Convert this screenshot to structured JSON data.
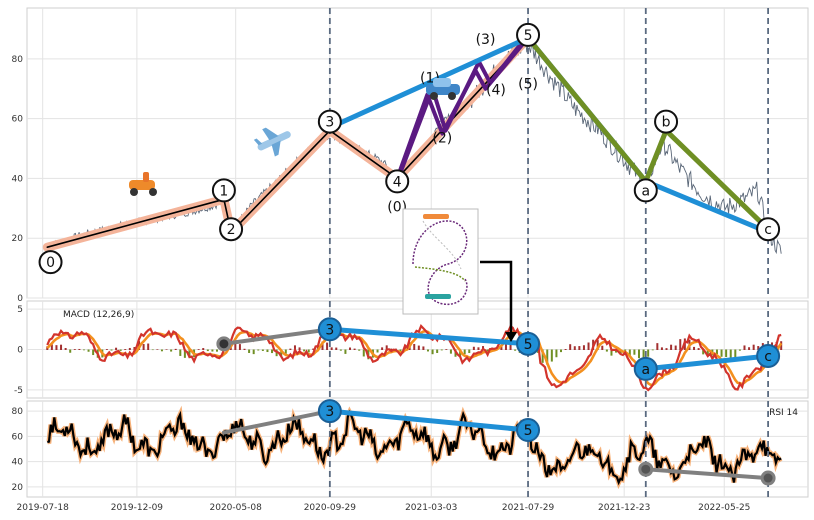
{
  "chart_data": {
    "type": "line",
    "x_ticks": [
      "2019-07-18",
      "2019-12-09",
      "2020-05-08",
      "2020-09-29",
      "2021-03-03",
      "2021-07-29",
      "2021-12-23",
      "2022-05-25"
    ],
    "vertical_markers": [
      "2020-09-29",
      "2021-07-29",
      "2022-01-25",
      "2022-07-31"
    ],
    "colors": {
      "price": "#5a6778",
      "elliott_minor": "#f4b49a",
      "elliott_path": "#000000",
      "blue_wave": "#1f8fd6",
      "purple_wave": "#5b1a82",
      "green_wave": "#6f8f24",
      "rsi": "#000000",
      "rsi_glow": "#f7b27a",
      "macd_line": "#d2342c",
      "macd_signal": "#f3901f",
      "macd_hist_pos": "#a33030",
      "macd_hist_neg": "#6f8f24",
      "grey_trend": "#808080",
      "marker_line": "#5a6a80"
    },
    "price_panel": {
      "ylim": [
        0,
        97
      ],
      "yticks": [
        0,
        20,
        40,
        60,
        80
      ],
      "series": [
        {
          "x": "2019-07-25",
          "y": 17
        },
        {
          "x": "2019-09-15",
          "y": 21
        },
        {
          "x": "2019-11-10",
          "y": 24
        },
        {
          "x": "2020-01-15",
          "y": 27
        },
        {
          "x": "2020-03-01",
          "y": 29
        },
        {
          "x": "2020-04-05",
          "y": 31
        },
        {
          "x": "2020-04-20",
          "y": 33
        },
        {
          "x": "2020-05-01",
          "y": 22
        },
        {
          "x": "2020-06-01",
          "y": 31
        },
        {
          "x": "2020-07-15",
          "y": 40
        },
        {
          "x": "2020-08-20",
          "y": 48
        },
        {
          "x": "2020-09-29",
          "y": 55
        },
        {
          "x": "2020-11-01",
          "y": 51
        },
        {
          "x": "2020-12-15",
          "y": 46
        },
        {
          "x": "2021-01-10",
          "y": 41
        },
        {
          "x": "2021-02-15",
          "y": 48
        },
        {
          "x": "2021-03-20",
          "y": 60
        },
        {
          "x": "2021-04-25",
          "y": 64
        },
        {
          "x": "2021-05-25",
          "y": 72
        },
        {
          "x": "2021-06-25",
          "y": 80
        },
        {
          "x": "2021-07-29",
          "y": 85
        },
        {
          "x": "2021-09-01",
          "y": 74
        },
        {
          "x": "2021-10-10",
          "y": 63
        },
        {
          "x": "2021-11-15",
          "y": 56
        },
        {
          "x": "2021-12-20",
          "y": 47
        },
        {
          "x": "2022-01-25",
          "y": 38
        },
        {
          "x": "2022-02-20",
          "y": 52
        },
        {
          "x": "2022-03-15",
          "y": 44
        },
        {
          "x": "2022-04-20",
          "y": 35
        },
        {
          "x": "2022-05-25",
          "y": 30
        },
        {
          "x": "2022-06-25",
          "y": 33
        },
        {
          "x": "2022-07-15",
          "y": 36
        },
        {
          "x": "2022-07-31",
          "y": 22
        },
        {
          "x": "2022-08-20",
          "y": 15
        }
      ],
      "minor_wave": [
        {
          "x": "2019-07-25",
          "y": 17
        },
        {
          "x": "2020-04-20",
          "y": 33
        },
        {
          "x": "2020-05-01",
          "y": 22
        },
        {
          "x": "2020-09-29",
          "y": 56
        },
        {
          "x": "2021-01-10",
          "y": 40
        },
        {
          "x": "2021-07-29",
          "y": 87
        }
      ],
      "blue_wave": [
        {
          "x": "2020-09-29",
          "y": 57
        },
        {
          "x": "2021-07-29",
          "y": 87
        },
        {
          "x": "2022-01-25",
          "y": 39
        },
        {
          "x": "2022-07-31",
          "y": 22
        }
      ],
      "purple_waves": [
        [
          {
            "x": "2021-01-10",
            "y": 40
          },
          {
            "x": "2021-02-25",
            "y": 68
          },
          {
            "x": "2021-03-20",
            "y": 55
          },
          {
            "x": "2021-05-10",
            "y": 76
          },
          {
            "x": "2021-05-25",
            "y": 70
          },
          {
            "x": "2021-07-29",
            "y": 87
          }
        ],
        [
          {
            "x": "2021-01-15",
            "y": 42
          },
          {
            "x": "2021-03-05",
            "y": 70
          },
          {
            "x": "2021-03-25",
            "y": 56
          },
          {
            "x": "2021-05-15",
            "y": 79
          },
          {
            "x": "2021-06-01",
            "y": 72
          },
          {
            "x": "2021-07-29",
            "y": 88
          }
        ]
      ],
      "green_wave": [
        {
          "x": "2021-07-29",
          "y": 87
        },
        {
          "x": "2022-01-25",
          "y": 39
        },
        {
          "x": "2022-02-25",
          "y": 56
        },
        {
          "x": "2022-07-31",
          "y": 23
        }
      ],
      "wave_points": [
        {
          "label": "0",
          "x": "2019-07-30",
          "y": 12
        },
        {
          "label": "1",
          "x": "2020-04-20",
          "y": 36
        },
        {
          "label": "2",
          "x": "2020-05-01",
          "y": 23
        },
        {
          "label": "3",
          "x": "2020-09-29",
          "y": 59
        },
        {
          "label": "4",
          "x": "2021-01-10",
          "y": 39
        },
        {
          "label": "5",
          "x": "2021-07-29",
          "y": 88
        },
        {
          "label": "a",
          "x": "2022-01-25",
          "y": 36
        },
        {
          "label": "b",
          "x": "2022-02-25",
          "y": 59
        },
        {
          "label": "c",
          "x": "2022-07-31",
          "y": 23
        }
      ],
      "wave_text": [
        {
          "text": "(0)",
          "x": "2021-01-10",
          "y": 29
        },
        {
          "text": "(1)",
          "x": "2021-03-01",
          "y": 72
        },
        {
          "text": "(2)",
          "x": "2021-03-20",
          "y": 52
        },
        {
          "text": "(3)",
          "x": "2021-05-25",
          "y": 85
        },
        {
          "text": "(4)",
          "x": "2021-06-10",
          "y": 68
        },
        {
          "text": "(5)",
          "x": "2021-07-29",
          "y": 70
        }
      ]
    },
    "macd_panel": {
      "title": "MACD (12,26,9)",
      "ylim": [
        -6,
        6
      ],
      "yticks": [
        -5,
        0,
        5
      ],
      "points": [
        {
          "label": "3",
          "x": "2020-09-29",
          "y": 2.5
        },
        {
          "label": "5",
          "x": "2021-07-29",
          "y": 0.7
        },
        {
          "label": "a",
          "x": "2022-01-25",
          "y": -2.4
        },
        {
          "label": "c",
          "x": "2022-07-31",
          "y": -0.8
        }
      ],
      "grey_trend": [
        {
          "x": "2020-04-20",
          "y": 0.7
        },
        {
          "x": "2020-09-29",
          "y": 2.5
        }
      ]
    },
    "rsi_panel": {
      "title": "RSI 14",
      "ylim": [
        12,
        88
      ],
      "yticks": [
        20,
        40,
        60,
        80
      ],
      "points": [
        {
          "label": "3",
          "x": "2020-09-29",
          "y": 80
        },
        {
          "label": "5",
          "x": "2021-07-29",
          "y": 65
        }
      ],
      "grey_trend_1": [
        {
          "x": "2020-04-20",
          "y": 63
        },
        {
          "x": "2020-09-29",
          "y": 80
        }
      ],
      "grey_trend_2": [
        {
          "x": "2022-01-25",
          "y": 34
        },
        {
          "x": "2022-07-31",
          "y": 27
        }
      ]
    }
  }
}
